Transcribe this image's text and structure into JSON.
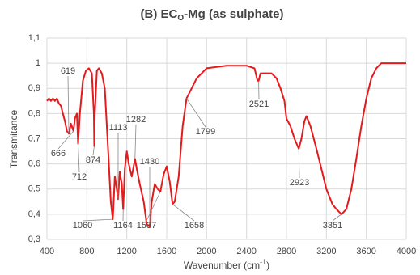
{
  "chart_data": {
    "type": "line",
    "title": {
      "main": "(B) EC",
      "sub": "O",
      "rest": "-Mg (as sulphate)"
    },
    "x_label": {
      "main": "Wavenumber (cm",
      "sup": "-1",
      "rest": ")"
    },
    "y_label": "Transmitance",
    "x": [
      400,
      420,
      440,
      460,
      480,
      500,
      520,
      540,
      560,
      580,
      600,
      619,
      640,
      666,
      680,
      700,
      712,
      730,
      760,
      790,
      820,
      850,
      870,
      874,
      880,
      900,
      920,
      950,
      980,
      1000,
      1020,
      1040,
      1060,
      1080,
      1100,
      1113,
      1130,
      1150,
      1164,
      1180,
      1200,
      1220,
      1250,
      1282,
      1300,
      1330,
      1370,
      1400,
      1430,
      1450,
      1480,
      1510,
      1537,
      1570,
      1600,
      1630,
      1658,
      1680,
      1720,
      1760,
      1799,
      1850,
      1900,
      1950,
      2000,
      2100,
      2200,
      2300,
      2400,
      2480,
      2510,
      2521,
      2540,
      2600,
      2650,
      2700,
      2740,
      2780,
      2800,
      2840,
      2880,
      2923,
      2950,
      2980,
      3000,
      3040,
      3100,
      3150,
      3200,
      3260,
      3300,
      3351,
      3400,
      3450,
      3500,
      3550,
      3600,
      3650,
      3700,
      3750,
      3800,
      3900,
      4000
    ],
    "values": [
      0.85,
      0.86,
      0.85,
      0.86,
      0.85,
      0.86,
      0.84,
      0.83,
      0.8,
      0.77,
      0.73,
      0.72,
      0.76,
      0.73,
      0.78,
      0.8,
      0.68,
      0.8,
      0.93,
      0.97,
      0.98,
      0.96,
      0.8,
      0.67,
      0.8,
      0.97,
      0.98,
      0.96,
      0.9,
      0.75,
      0.6,
      0.45,
      0.38,
      0.55,
      0.5,
      0.46,
      0.57,
      0.52,
      0.42,
      0.58,
      0.65,
      0.6,
      0.55,
      0.62,
      0.58,
      0.52,
      0.45,
      0.36,
      0.35,
      0.45,
      0.52,
      0.5,
      0.49,
      0.56,
      0.59,
      0.53,
      0.44,
      0.45,
      0.55,
      0.75,
      0.86,
      0.9,
      0.94,
      0.96,
      0.98,
      0.985,
      0.99,
      0.99,
      0.99,
      0.98,
      0.93,
      0.93,
      0.96,
      0.96,
      0.96,
      0.94,
      0.9,
      0.85,
      0.78,
      0.75,
      0.7,
      0.66,
      0.7,
      0.77,
      0.79,
      0.75,
      0.66,
      0.58,
      0.5,
      0.44,
      0.42,
      0.4,
      0.42,
      0.5,
      0.62,
      0.75,
      0.86,
      0.94,
      0.98,
      1.0,
      1.0,
      1.0,
      1.0
    ],
    "color": "#e41a1c",
    "xlim": [
      400,
      4000
    ],
    "ylim": [
      0.3,
      1.1
    ],
    "xticks": [
      400,
      800,
      1200,
      1600,
      2000,
      2400,
      2800,
      3200,
      3600,
      4000
    ],
    "yticks": [
      {
        "value": 0.3,
        "label": "0,3"
      },
      {
        "value": 0.4,
        "label": "0,4"
      },
      {
        "value": 0.5,
        "label": "0,5"
      },
      {
        "value": 0.6,
        "label": "0,6"
      },
      {
        "value": 0.7,
        "label": "0,7"
      },
      {
        "value": 0.8,
        "label": "0,8"
      },
      {
        "value": 0.9,
        "label": "0,9"
      },
      {
        "value": 1,
        "label": "1"
      },
      {
        "value": 1.1,
        "label": "1,1"
      }
    ],
    "grid": true,
    "annotations": [
      619,
      666,
      712,
      874,
      1060,
      1113,
      1164,
      1282,
      1430,
      1537,
      1658,
      1799,
      2521,
      2923,
      3351
    ]
  }
}
